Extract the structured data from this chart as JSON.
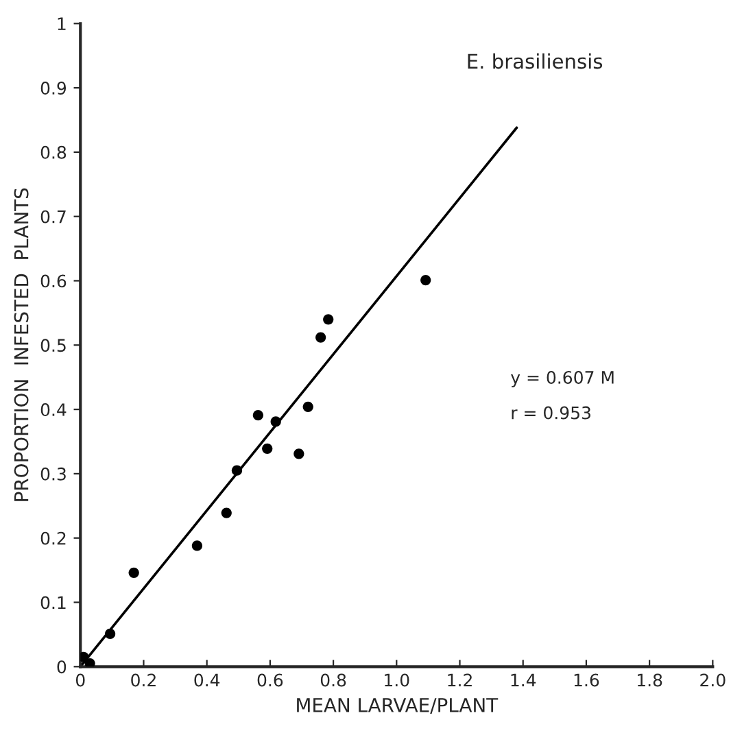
{
  "chart_data": {
    "type": "scatter",
    "title": "E. brasiliensis",
    "xlabel": "MEAN LARVAE/PLANT",
    "ylabel": "PROPORTION  INFESTED  PLANTS",
    "annotations": [
      "y = 0.607 M",
      "r = 0.953"
    ],
    "series": [
      {
        "color": "#000000",
        "marker": "circle",
        "x": [
          0.01,
          0.03,
          0.094,
          0.169,
          0.369,
          0.462,
          0.495,
          0.562,
          0.591,
          0.618,
          0.691,
          0.72,
          0.76,
          0.784,
          1.092
        ],
        "values": [
          0.015,
          0.005,
          0.051,
          0.146,
          0.188,
          0.239,
          0.305,
          0.391,
          0.339,
          0.381,
          0.331,
          0.404,
          0.512,
          0.54,
          0.601
        ]
      },
      {
        "type": "line",
        "color": "#000000",
        "line_style": "solid",
        "x": [
          0,
          1.38
        ],
        "values": [
          0,
          0.838
        ]
      }
    ],
    "xlim": [
      0,
      2.0
    ],
    "ylim": [
      0,
      1
    ],
    "xticks": [
      0,
      {
        "value": 0.2,
        "label": "0.2"
      },
      {
        "value": 0.4,
        "label": "0.4"
      },
      {
        "value": 0.6,
        "label": "0.6"
      },
      {
        "value": 0.8,
        "label": "0.8"
      },
      {
        "value": 1.0,
        "label": "1.0"
      },
      {
        "value": 1.2,
        "label": "1.2"
      },
      {
        "value": 1.4,
        "label": "1.4"
      },
      {
        "value": 1.6,
        "label": "1.6"
      },
      {
        "value": 1.8,
        "label": "1.8"
      },
      {
        "value": 2.0,
        "label": "2.0"
      }
    ],
    "yticks": [
      0,
      0.1,
      0.2,
      0.3,
      0.4,
      0.5,
      0.6,
      0.7,
      0.8,
      0.9,
      1
    ],
    "grid": false,
    "legend": false
  }
}
